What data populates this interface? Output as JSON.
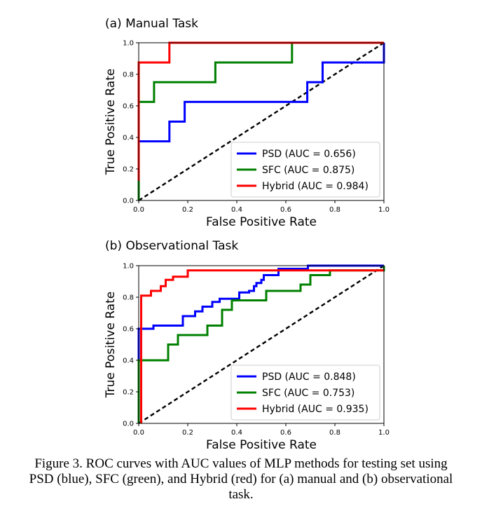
{
  "caption": "Figure 3. ROC curves with AUC values of MLP methods for testing set using PSD (blue), SFC (green), and Hybrid (red) for (a) manual and (b) observational task.",
  "colors": {
    "psd": "#0000ff",
    "sfc": "#008000",
    "hybrid": "#ff0000",
    "diagonal": "#000000"
  },
  "chart_data": [
    {
      "type": "line",
      "title": "(a) Manual Task",
      "xlabel": "False Positive Rate",
      "ylabel": "True Positive Rate",
      "xlim": [
        0,
        1
      ],
      "ylim": [
        0,
        1
      ],
      "xticks": [
        "0.0",
        "0.2",
        "0.4",
        "0.6",
        "0.8",
        "1.0"
      ],
      "yticks": [
        "0.0",
        "0.2",
        "0.4",
        "0.6",
        "0.8",
        "1.0"
      ],
      "grid": false,
      "legend_position": "lower-right",
      "series": [
        {
          "name": "PSD (AUC = 0.656)",
          "color": "#0000ff",
          "x": [
            0,
            0,
            0.125,
            0.125,
            0.1875,
            0.1875,
            0.6875,
            0.6875,
            0.75,
            0.75,
            1.0,
            1.0
          ],
          "y": [
            0,
            0.375,
            0.375,
            0.5,
            0.5,
            0.625,
            0.625,
            0.75,
            0.75,
            0.875,
            0.875,
            1.0
          ]
        },
        {
          "name": "SFC (AUC = 0.875)",
          "color": "#008000",
          "x": [
            0,
            0,
            0.0625,
            0.0625,
            0.3125,
            0.3125,
            0.625,
            0.625,
            1.0
          ],
          "y": [
            0,
            0.625,
            0.625,
            0.75,
            0.75,
            0.875,
            0.875,
            1.0,
            1.0
          ]
        },
        {
          "name": "Hybrid (AUC = 0.984)",
          "color": "#ff0000",
          "x": [
            0,
            0,
            0.125,
            0.125,
            1.0
          ],
          "y": [
            0.125,
            0.875,
            0.875,
            1.0,
            1.0
          ]
        }
      ],
      "diagonal": {
        "x": [
          0,
          1
        ],
        "y": [
          0,
          1
        ],
        "style": "dashed"
      }
    },
    {
      "type": "line",
      "title": "(b) Observational Task",
      "xlabel": "False Positive Rate",
      "ylabel": "True Positive Rate",
      "xlim": [
        0,
        1
      ],
      "ylim": [
        0,
        1
      ],
      "xticks": [
        "0.0",
        "0.2",
        "0.4",
        "0.6",
        "0.8",
        "1.0"
      ],
      "yticks": [
        "0.0",
        "0.2",
        "0.4",
        "0.6",
        "0.8",
        "1.0"
      ],
      "grid": false,
      "legend_position": "lower-right",
      "series": [
        {
          "name": "PSD (AUC = 0.848)",
          "color": "#0000ff",
          "x": [
            0,
            0,
            0.01,
            0.01,
            0.06,
            0.06,
            0.18,
            0.18,
            0.23,
            0.23,
            0.26,
            0.26,
            0.3,
            0.3,
            0.33,
            0.33,
            0.41,
            0.41,
            0.45,
            0.45,
            0.47,
            0.47,
            0.48,
            0.48,
            0.5,
            0.5,
            0.51,
            0.51,
            0.57,
            0.57,
            0.69,
            0.69,
            0.98,
            0.98,
            1.0
          ],
          "y": [
            0.25,
            0.6,
            0.6,
            0.6,
            0.6,
            0.62,
            0.62,
            0.68,
            0.68,
            0.71,
            0.71,
            0.74,
            0.74,
            0.77,
            0.77,
            0.79,
            0.79,
            0.83,
            0.83,
            0.84,
            0.84,
            0.87,
            0.87,
            0.89,
            0.89,
            0.91,
            0.91,
            0.94,
            0.94,
            0.98,
            0.98,
            1.0,
            1.0,
            1.0,
            1.0
          ]
        },
        {
          "name": "SFC (AUC = 0.753)",
          "color": "#008000",
          "x": [
            0,
            0,
            0.12,
            0.12,
            0.16,
            0.16,
            0.28,
            0.28,
            0.34,
            0.34,
            0.38,
            0.38,
            0.52,
            0.52,
            0.66,
            0.66,
            0.7,
            0.7,
            0.78,
            0.78,
            1.0,
            1.0
          ],
          "y": [
            0,
            0.4,
            0.4,
            0.5,
            0.5,
            0.56,
            0.56,
            0.62,
            0.62,
            0.72,
            0.72,
            0.78,
            0.78,
            0.84,
            0.84,
            0.88,
            0.88,
            0.94,
            0.94,
            0.97,
            0.97,
            1.0
          ]
        },
        {
          "name": "Hybrid (AUC = 0.935)",
          "color": "#ff0000",
          "x": [
            0.01,
            0.01,
            0.05,
            0.05,
            0.09,
            0.09,
            0.11,
            0.11,
            0.14,
            0.14,
            0.2,
            0.2,
            1.0
          ],
          "y": [
            0,
            0.81,
            0.81,
            0.84,
            0.84,
            0.87,
            0.87,
            0.91,
            0.91,
            0.93,
            0.93,
            0.97,
            0.97
          ]
        }
      ],
      "diagonal": {
        "x": [
          0,
          1
        ],
        "y": [
          0,
          1
        ],
        "style": "dashed"
      }
    }
  ]
}
